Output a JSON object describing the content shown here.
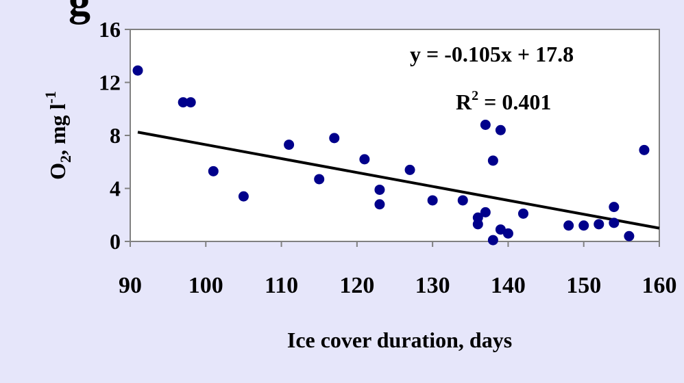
{
  "chart_data": {
    "type": "scatter",
    "title_fragment": "g",
    "xlabel": "Ice cover duration, days",
    "ylabel": {
      "main": "O",
      "sub": "2",
      "rest": ", mg l",
      "sup": "-1"
    },
    "xlim": [
      90,
      160
    ],
    "ylim": [
      0,
      16
    ],
    "x_ticks": [
      90,
      100,
      110,
      120,
      130,
      140,
      150,
      160
    ],
    "y_ticks": [
      0,
      4,
      8,
      12,
      16
    ],
    "grid": false,
    "legend": "none",
    "point_color": "#00008b",
    "line_color": "#000000",
    "points": [
      {
        "x": 91,
        "y": 12.9
      },
      {
        "x": 97,
        "y": 10.5
      },
      {
        "x": 98,
        "y": 10.5
      },
      {
        "x": 101,
        "y": 5.3
      },
      {
        "x": 105,
        "y": 3.4
      },
      {
        "x": 111,
        "y": 7.3
      },
      {
        "x": 115,
        "y": 4.7
      },
      {
        "x": 117,
        "y": 7.8
      },
      {
        "x": 121,
        "y": 6.2
      },
      {
        "x": 123,
        "y": 3.9
      },
      {
        "x": 123,
        "y": 2.8
      },
      {
        "x": 127,
        "y": 5.4
      },
      {
        "x": 130,
        "y": 3.1
      },
      {
        "x": 134,
        "y": 3.1
      },
      {
        "x": 136,
        "y": 1.8
      },
      {
        "x": 136,
        "y": 1.3
      },
      {
        "x": 137,
        "y": 8.8
      },
      {
        "x": 137,
        "y": 2.2
      },
      {
        "x": 138,
        "y": 6.1
      },
      {
        "x": 138,
        "y": 0.1
      },
      {
        "x": 139,
        "y": 8.4
      },
      {
        "x": 139,
        "y": 0.9
      },
      {
        "x": 140,
        "y": 0.6
      },
      {
        "x": 142,
        "y": 2.1
      },
      {
        "x": 148,
        "y": 1.2
      },
      {
        "x": 150,
        "y": 1.2
      },
      {
        "x": 152,
        "y": 1.3
      },
      {
        "x": 154,
        "y": 2.6
      },
      {
        "x": 154,
        "y": 1.4
      },
      {
        "x": 156,
        "y": 0.4
      },
      {
        "x": 158,
        "y": 6.9
      }
    ],
    "trendline": {
      "slope": -0.105,
      "intercept": 17.8
    },
    "equation_text": "y = -0.105x + 17.8",
    "r2_label": "R",
    "r2_sup": "2",
    "r2_value": " = 0.401"
  }
}
